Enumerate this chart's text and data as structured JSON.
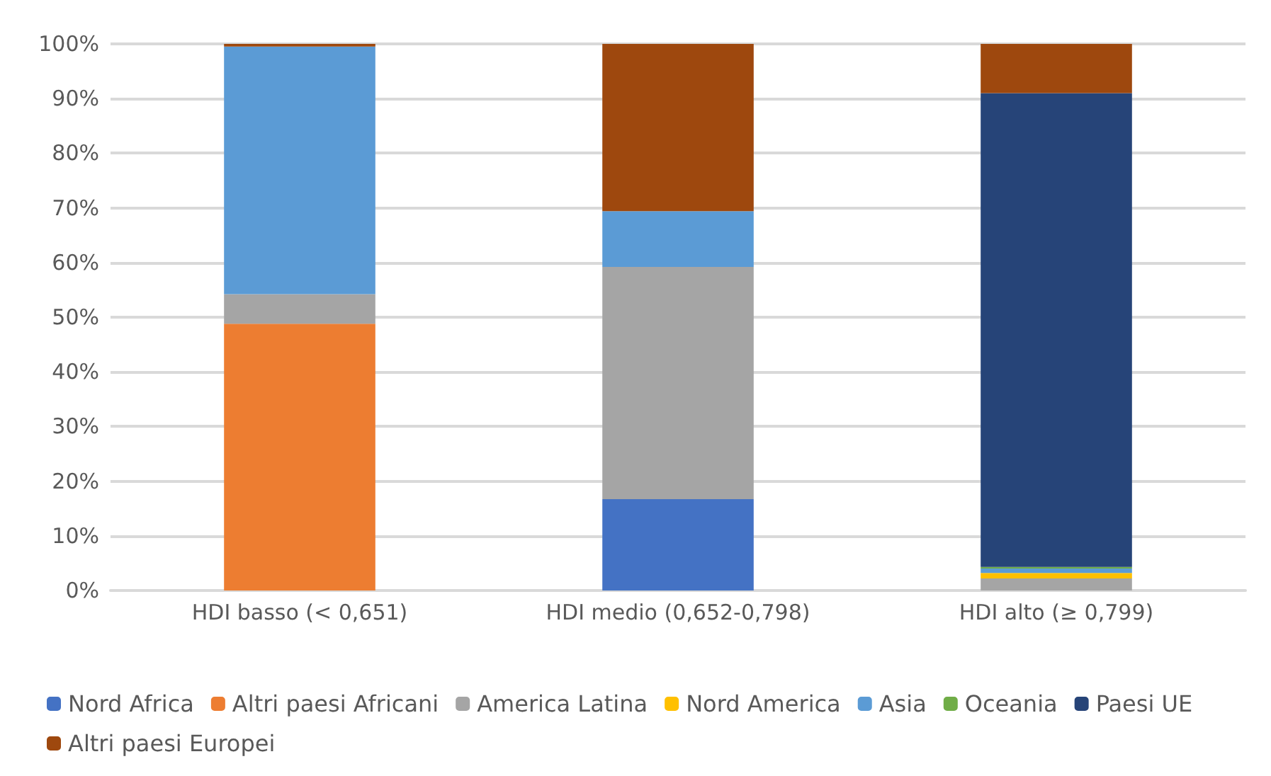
{
  "chart_data": {
    "type": "bar",
    "stacked": true,
    "categories": [
      "HDI basso (< 0,651)",
      "HDI medio (0,652-0,798)",
      "HDI alto (≥ 0,799)"
    ],
    "series": [
      {
        "name": "Nord Africa",
        "color": "#4472c4",
        "values": [
          0,
          16.7,
          0
        ]
      },
      {
        "name": "Altri paesi Africani",
        "color": "#ed7d31",
        "values": [
          48.8,
          0,
          0
        ]
      },
      {
        "name": "America Latina",
        "color": "#a5a5a5",
        "values": [
          5.4,
          42.5,
          2.2
        ]
      },
      {
        "name": "Nord America",
        "color": "#ffc000",
        "values": [
          0,
          0,
          1.0
        ]
      },
      {
        "name": "Asia",
        "color": "#5b9bd5",
        "values": [
          45.3,
          10.2,
          0.8
        ]
      },
      {
        "name": "Oceania",
        "color": "#70ad47",
        "values": [
          0,
          0,
          0.3
        ]
      },
      {
        "name": "Paesi UE",
        "color": "#264478",
        "values": [
          0,
          0,
          86.7
        ]
      },
      {
        "name": "Altri paesi Europei",
        "color": "#9e480e",
        "values": [
          0.5,
          30.6,
          9
        ]
      }
    ],
    "ylim": [
      0,
      100
    ],
    "yticks": [
      {
        "value": 0,
        "label": "0%"
      },
      {
        "value": 10,
        "label": "10%"
      },
      {
        "value": 20,
        "label": "20%"
      },
      {
        "value": 30,
        "label": "30%"
      },
      {
        "value": 40,
        "label": "40%"
      },
      {
        "value": 50,
        "label": "50%"
      },
      {
        "value": 60,
        "label": "60%"
      },
      {
        "value": 70,
        "label": "70%"
      },
      {
        "value": 80,
        "label": "80%"
      },
      {
        "value": 90,
        "label": "90%"
      },
      {
        "value": 100,
        "label": "100%"
      }
    ],
    "grid": "y",
    "legend": "bottom"
  }
}
